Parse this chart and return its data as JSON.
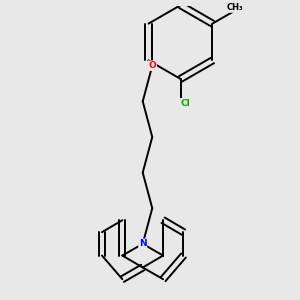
{
  "background_color": "#e8e8e8",
  "atom_colors": {
    "N": "#0000ff",
    "O": "#ff0000",
    "Cl": "#00aa00",
    "C": "#000000"
  },
  "bond_color": "#000000",
  "bond_width": 1.4,
  "font_size_atom": 6.5,
  "figsize": [
    3.0,
    3.0
  ],
  "dpi": 100
}
